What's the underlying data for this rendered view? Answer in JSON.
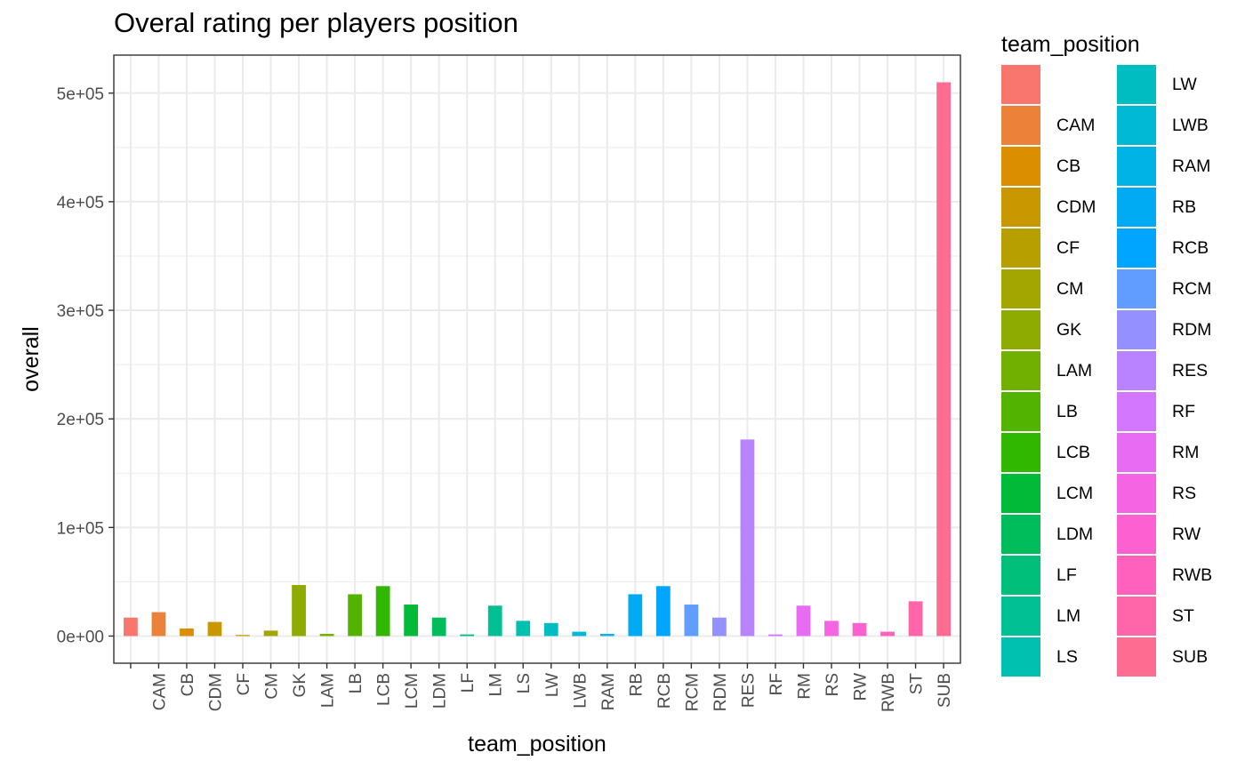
{
  "chart_data": {
    "type": "bar",
    "title": "Overal rating per players position",
    "xlabel": "team_position",
    "ylabel": "overall",
    "categories": [
      "",
      "CAM",
      "CB",
      "CDM",
      "CF",
      "CM",
      "GK",
      "LAM",
      "LB",
      "LCB",
      "LCM",
      "LDM",
      "LF",
      "LM",
      "LS",
      "LW",
      "LWB",
      "RAM",
      "RB",
      "RCB",
      "RCM",
      "RDM",
      "RES",
      "RF",
      "RM",
      "RS",
      "RW",
      "RWB",
      "ST",
      "SUB"
    ],
    "values": [
      17000,
      22000,
      7000,
      13000,
      1000,
      5000,
      47000,
      2000,
      38500,
      46000,
      29000,
      17000,
      1500,
      28000,
      14000,
      12000,
      4000,
      2000,
      38500,
      46000,
      29000,
      17000,
      181000,
      1500,
      28000,
      14000,
      12000,
      4000,
      32000,
      510000
    ],
    "colors": [
      "#F8766D",
      "#EC8239",
      "#DB8E00",
      "#C99800",
      "#B79F00",
      "#A3A500",
      "#8DAB00",
      "#72B000",
      "#53B400",
      "#30B700",
      "#00BA38",
      "#00BD5C",
      "#00BF7A",
      "#00C094",
      "#00C0AF",
      "#00BDC2",
      "#00BAD5",
      "#00B3E6",
      "#00ABF4",
      "#00A5FF",
      "#619CFF",
      "#9590FF",
      "#B983FF",
      "#D377FF",
      "#E76BF3",
      "#F564E3",
      "#FD61D1",
      "#FF61BD",
      "#FF65A9",
      "#FF6C91"
    ],
    "ylim": [
      -25000,
      535000
    ],
    "yticks": [
      0,
      100000,
      200000,
      300000,
      400000,
      500000
    ],
    "ytick_labels": [
      "0e+00",
      "1e+05",
      "2e+05",
      "3e+05",
      "4e+05",
      "5e+05"
    ],
    "grid": true,
    "legend": {
      "title": "team_position",
      "placement": "right",
      "columns": 2
    }
  }
}
